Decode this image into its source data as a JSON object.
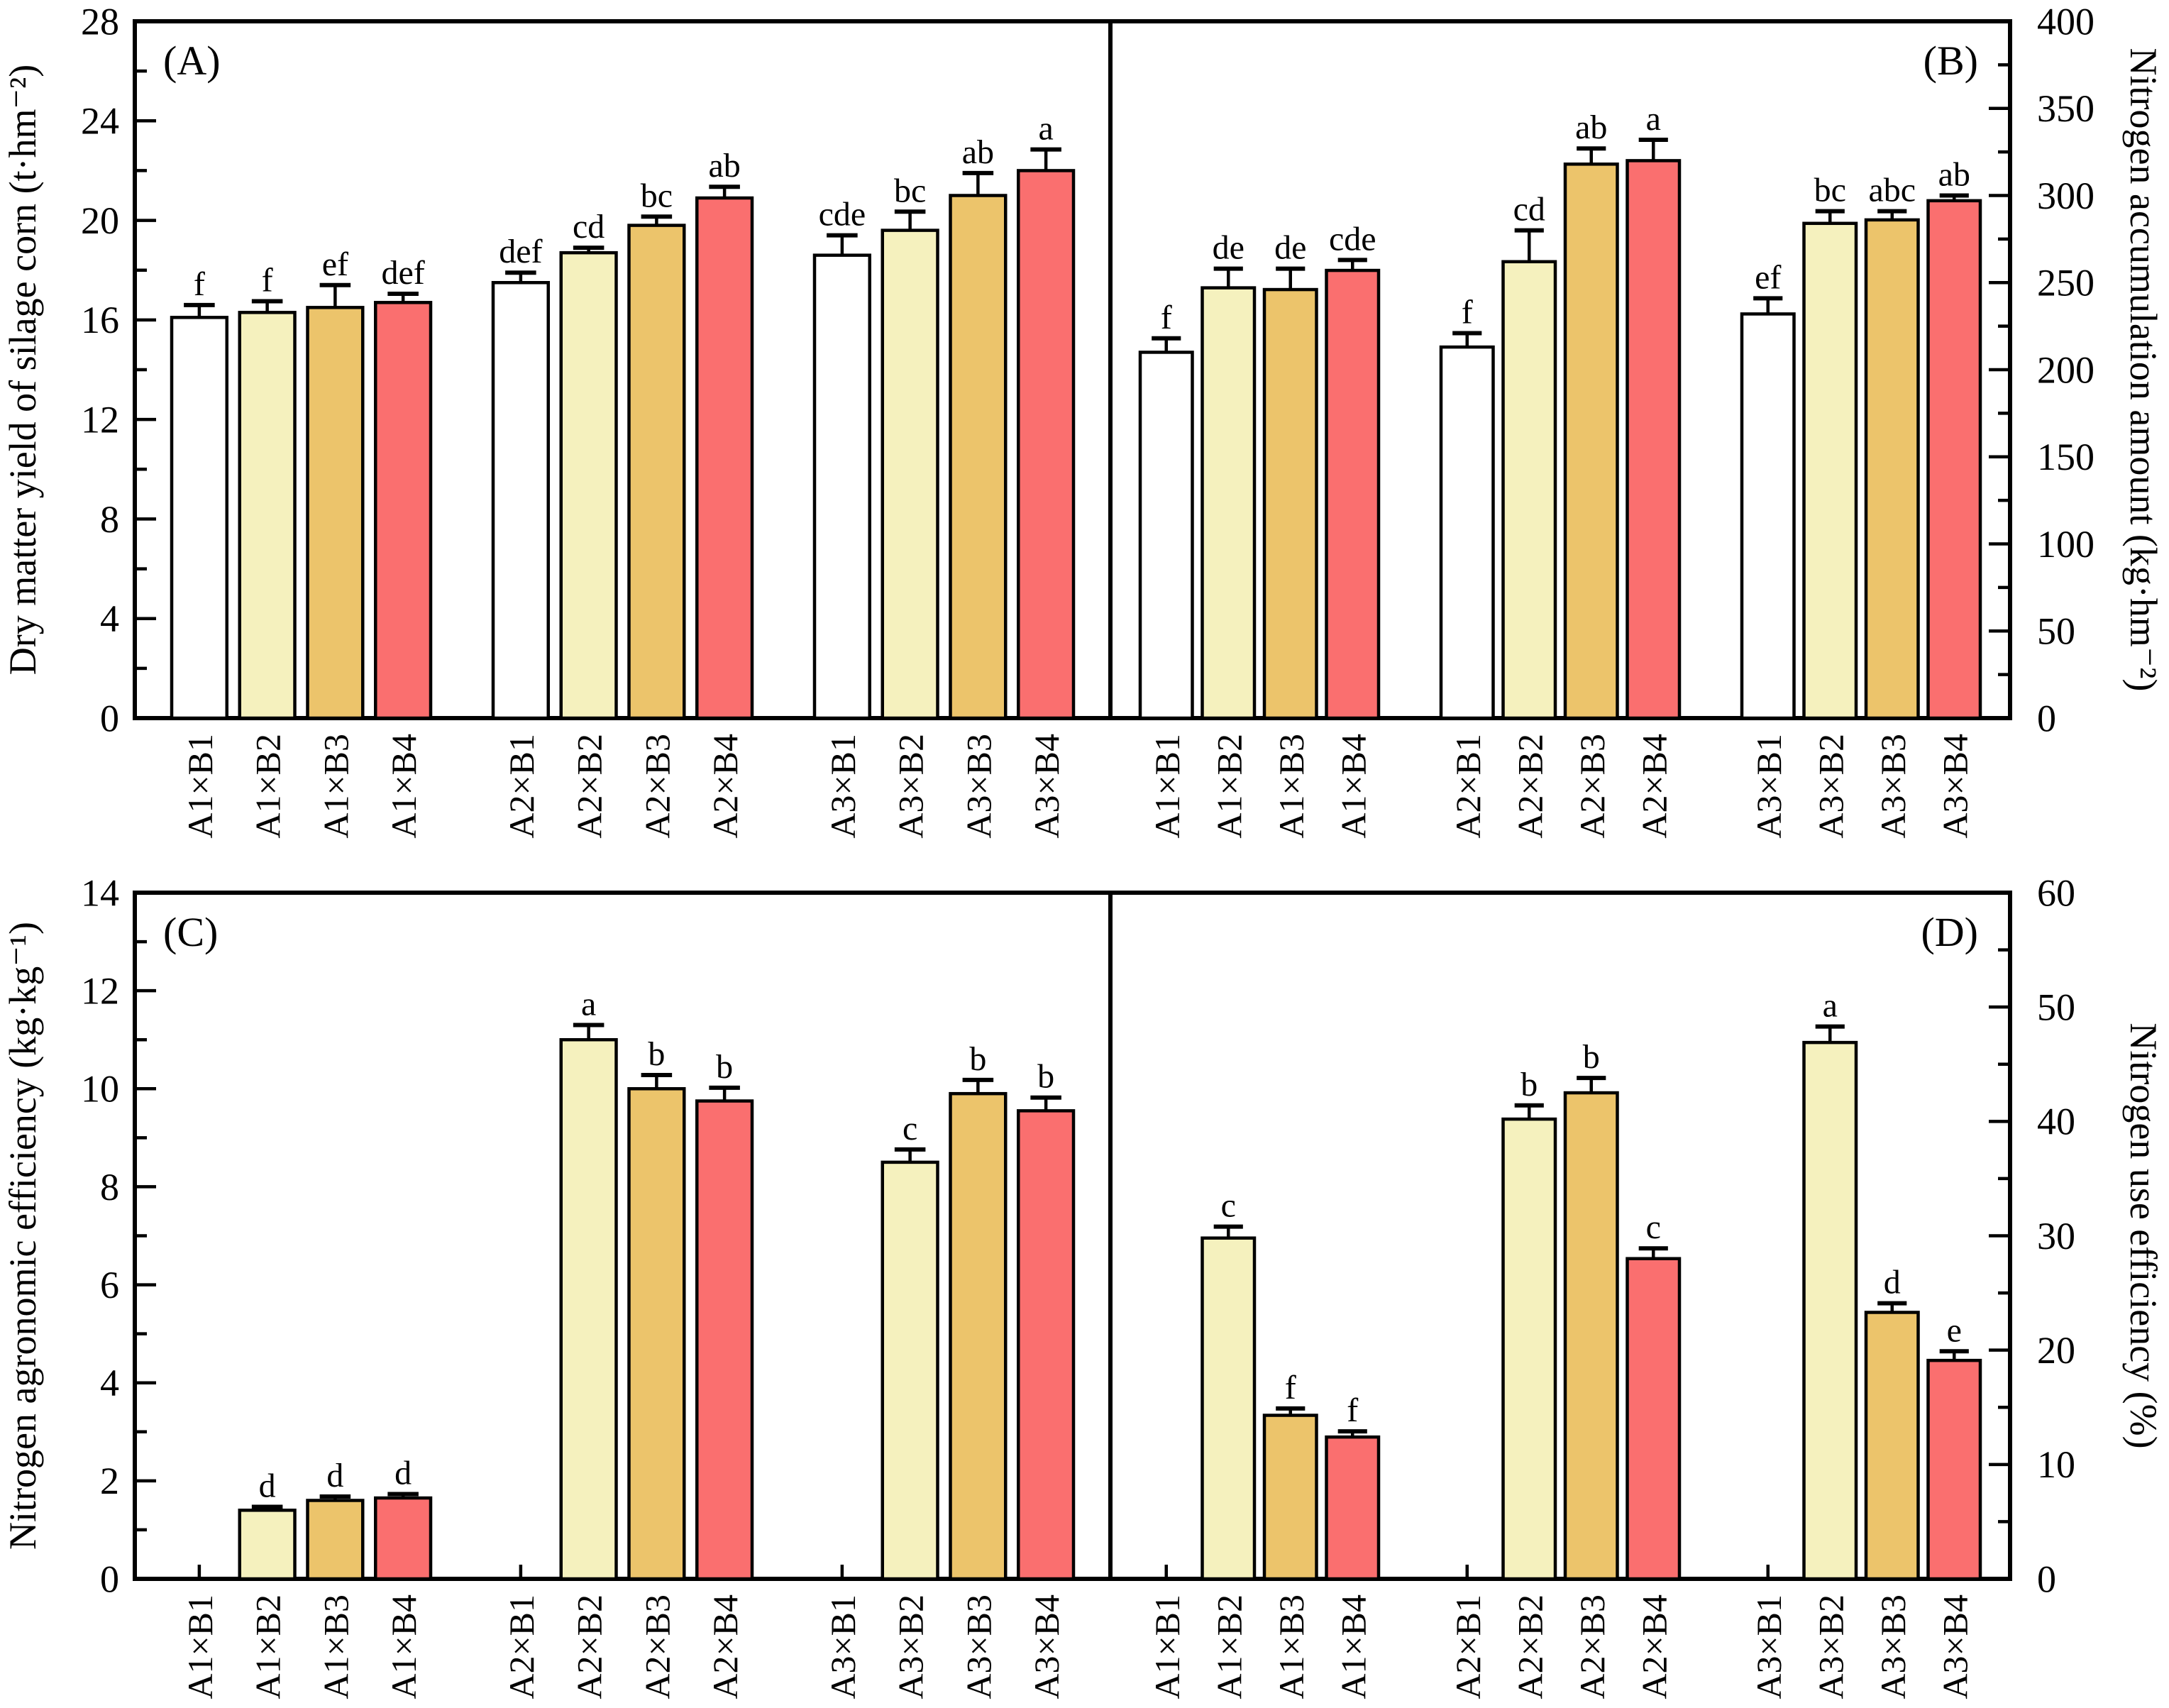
{
  "figure": {
    "background": "#FFFFFF",
    "border_color": "#000000",
    "bar_colors": {
      "B1": "#FFFFFF",
      "B2": "#F5F1BE",
      "B3": "#ECC46B",
      "B4": "#FA6F6F"
    },
    "categories": [
      "A1×B1",
      "A1×B2",
      "A1×B3",
      "A1×B4",
      "A2×B1",
      "A2×B2",
      "A2×B3",
      "A2×B4",
      "A3×B1",
      "A3×B2",
      "A3×B3",
      "A3×B4"
    ]
  },
  "chart_data": [
    {
      "type": "bar",
      "panel_label": "(A)",
      "axis_side": "left",
      "row": 0,
      "col": 0,
      "ylabel": "Dry matter yield of silage corn (t·hm⁻²)",
      "ylim": [
        0,
        28
      ],
      "yticks": [
        0,
        4,
        8,
        12,
        16,
        20,
        24,
        28
      ],
      "minor_step": 2,
      "categories": [
        "A1×B1",
        "A1×B2",
        "A1×B3",
        "A1×B4",
        "A2×B1",
        "A2×B2",
        "A2×B3",
        "A2×B4",
        "A3×B1",
        "A3×B2",
        "A3×B3",
        "A3×B4"
      ],
      "values": [
        16.1,
        16.3,
        16.5,
        16.7,
        17.5,
        18.7,
        19.8,
        20.9,
        18.6,
        19.6,
        21.0,
        22.0
      ],
      "errors": [
        0.5,
        0.45,
        0.9,
        0.35,
        0.4,
        0.2,
        0.35,
        0.45,
        0.8,
        0.75,
        0.9,
        0.85
      ],
      "letters": [
        "f",
        "f",
        "ef",
        "def",
        "def",
        "cd",
        "bc",
        "ab",
        "cde",
        "bc",
        "ab",
        "a"
      ]
    },
    {
      "type": "bar",
      "panel_label": "(B)",
      "axis_side": "right",
      "row": 0,
      "col": 1,
      "ylabel": "Nitrogen accumulation amount (kg·hm⁻²)",
      "ylim": [
        0,
        400
      ],
      "yticks": [
        0,
        50,
        100,
        150,
        200,
        250,
        300,
        350,
        400
      ],
      "minor_step": 25,
      "categories": [
        "A1×B1",
        "A1×B2",
        "A1×B3",
        "A1×B4",
        "A2×B1",
        "A2×B2",
        "A2×B3",
        "A2×B4",
        "A3×B1",
        "A3×B2",
        "A3×B3",
        "A3×B4"
      ],
      "values": [
        210,
        247,
        246,
        257,
        213,
        262,
        318,
        320,
        232,
        284,
        286,
        297
      ],
      "errors": [
        8,
        11,
        12,
        6,
        8,
        18,
        9,
        12,
        9,
        7,
        5,
        3
      ],
      "letters": [
        "f",
        "de",
        "de",
        "cde",
        "f",
        "cd",
        "ab",
        "a",
        "ef",
        "bc",
        "abc",
        "ab"
      ]
    },
    {
      "type": "bar",
      "panel_label": "(C)",
      "axis_side": "left",
      "row": 1,
      "col": 0,
      "ylabel": "Nitrogen agronomic efficiency (kg·kg⁻¹)",
      "ylim": [
        0,
        14
      ],
      "yticks": [
        0,
        2,
        4,
        6,
        8,
        10,
        12,
        14
      ],
      "minor_step": 1,
      "categories": [
        "A1×B1",
        "A1×B2",
        "A1×B3",
        "A1×B4",
        "A2×B1",
        "A2×B2",
        "A2×B3",
        "A2×B4",
        "A3×B1",
        "A3×B2",
        "A3×B3",
        "A3×B4"
      ],
      "values": [
        0,
        1.4,
        1.6,
        1.65,
        0,
        11.0,
        10.0,
        9.75,
        0,
        8.5,
        9.9,
        9.55
      ],
      "errors": [
        0,
        0.07,
        0.08,
        0.08,
        0,
        0.3,
        0.28,
        0.27,
        0,
        0.26,
        0.28,
        0.27
      ],
      "letters": [
        "",
        "d",
        "d",
        "d",
        "",
        "a",
        "b",
        "b",
        "",
        "c",
        "b",
        "b"
      ]
    },
    {
      "type": "bar",
      "panel_label": "(D)",
      "axis_side": "right",
      "row": 1,
      "col": 1,
      "ylabel": "Nitrogen use efficiency (%)",
      "ylim": [
        0,
        60
      ],
      "yticks": [
        0,
        10,
        20,
        30,
        40,
        50,
        60
      ],
      "minor_step": 5,
      "categories": [
        "A1×B1",
        "A1×B2",
        "A1×B3",
        "A1×B4",
        "A2×B1",
        "A2×B2",
        "A2×B3",
        "A2×B4",
        "A3×B1",
        "A3×B2",
        "A3×B3",
        "A3×B4"
      ],
      "values": [
        0,
        29.8,
        14.3,
        12.4,
        0,
        40.2,
        42.5,
        28.0,
        0,
        46.9,
        23.3,
        19.1
      ],
      "errors": [
        0,
        1.0,
        0.6,
        0.5,
        0,
        1.2,
        1.3,
        0.9,
        0,
        1.4,
        0.8,
        0.8
      ],
      "letters": [
        "",
        "c",
        "f",
        "f",
        "",
        "b",
        "b",
        "c",
        "",
        "a",
        "d",
        "e"
      ]
    }
  ]
}
